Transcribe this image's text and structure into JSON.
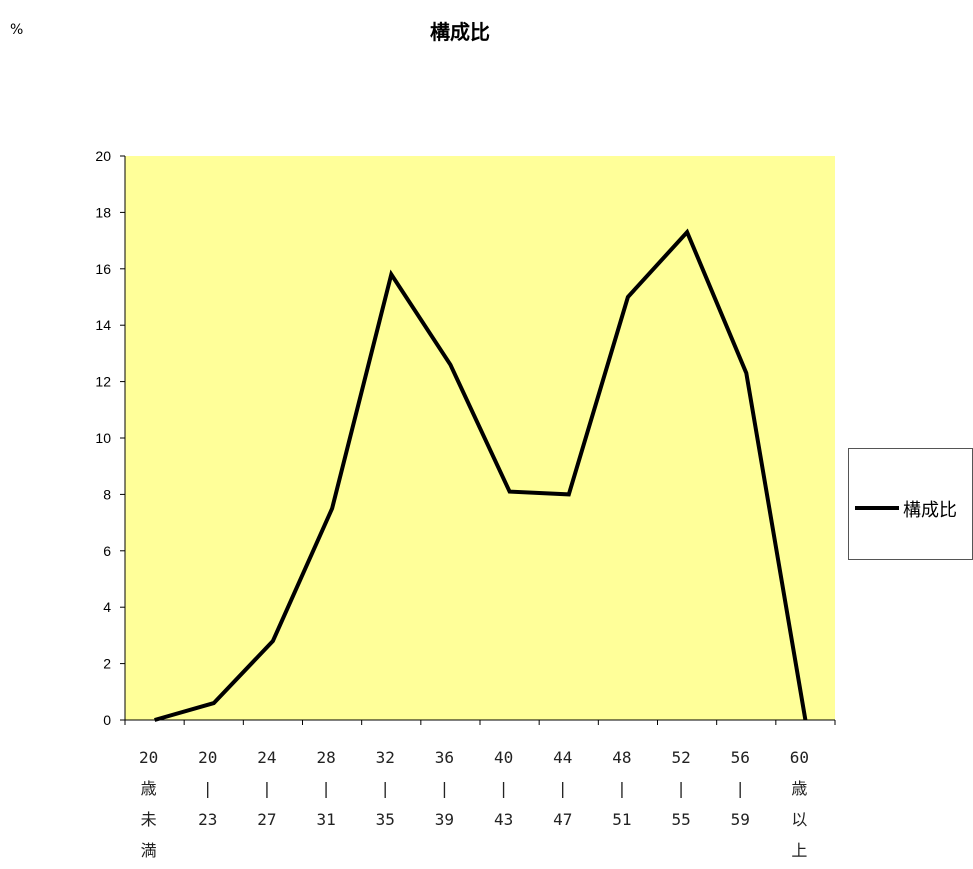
{
  "chart_data": {
    "type": "line",
    "title": "構成比",
    "unit_label": "%",
    "categories": [
      [
        "20",
        "歳",
        "未",
        "満"
      ],
      [
        "20",
        "|",
        "23"
      ],
      [
        "24",
        "|",
        "27"
      ],
      [
        "28",
        "|",
        "31"
      ],
      [
        "32",
        "|",
        "35"
      ],
      [
        "36",
        "|",
        "39"
      ],
      [
        "40",
        "|",
        "43"
      ],
      [
        "44",
        "|",
        "47"
      ],
      [
        "48",
        "|",
        "51"
      ],
      [
        "52",
        "|",
        "55"
      ],
      [
        "56",
        "|",
        "59"
      ],
      [
        "60",
        "歳",
        "以",
        "上"
      ]
    ],
    "series": [
      {
        "name": "構成比",
        "values": [
          0.0,
          0.6,
          2.8,
          7.5,
          15.8,
          12.6,
          8.1,
          8.0,
          15.0,
          17.3,
          12.3,
          0.0
        ],
        "color": "#000000"
      }
    ],
    "ylim": [
      0,
      20
    ],
    "yticks": [
      0,
      2,
      4,
      6,
      8,
      10,
      12,
      14,
      16,
      18,
      20
    ],
    "plot_background": "#ffff99",
    "grid": false,
    "legend_position": "right"
  }
}
